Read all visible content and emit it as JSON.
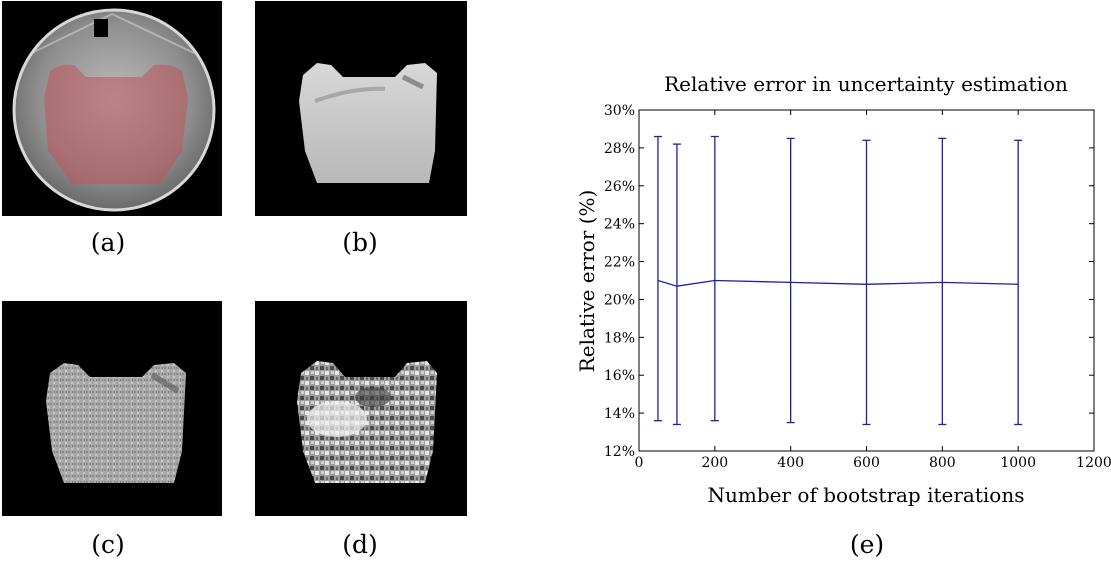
{
  "panels": {
    "a": {
      "caption": "(a)"
    },
    "b": {
      "caption": "(b)"
    },
    "c": {
      "caption": "(c)"
    },
    "d": {
      "caption": "(d)"
    },
    "e": {
      "caption": "(e)"
    }
  },
  "chart_data": {
    "type": "line",
    "title": "Relative error in uncertainty estimation",
    "xlabel": "Number of bootstrap iterations",
    "ylabel": "Relative error (%)",
    "xlim": [
      0,
      1200
    ],
    "ylim": [
      12,
      30
    ],
    "x_ticks": [
      0,
      200,
      400,
      600,
      800,
      1000,
      1200
    ],
    "y_ticks": [
      12,
      14,
      16,
      18,
      20,
      22,
      24,
      26,
      28,
      30
    ],
    "y_tick_suffix": "%",
    "grid": false,
    "color": "#1f1fa8",
    "series": [
      {
        "x": [
          50,
          100,
          200,
          400,
          600,
          800,
          1000
        ],
        "y": [
          21.0,
          20.7,
          21.0,
          20.9,
          20.8,
          20.9,
          20.8
        ],
        "err_low": [
          13.6,
          13.4,
          13.6,
          13.5,
          13.4,
          13.4,
          13.4
        ],
        "err_high": [
          28.6,
          28.2,
          28.6,
          28.5,
          28.4,
          28.5,
          28.4
        ]
      }
    ]
  }
}
